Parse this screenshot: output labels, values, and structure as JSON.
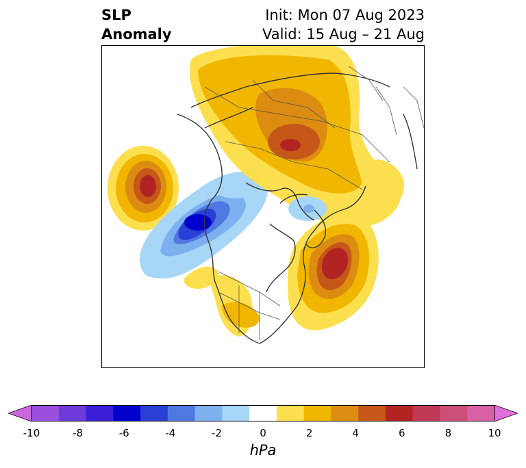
{
  "title": {
    "left_line1": "SLP",
    "left_line2": "Anomaly",
    "right_line1": "Init: Mon 07 Aug 2023",
    "right_line2": "Valid: 15 Aug – 21 Aug"
  },
  "colorbar": {
    "ticks": [
      "-10",
      "-8",
      "-6",
      "-4",
      "-2",
      "0",
      "2",
      "4",
      "6",
      "8",
      "10"
    ],
    "unit": "hPa",
    "colors": [
      "#cc66dd",
      "#9a4fdd",
      "#6e3ad9",
      "#3b1fd6",
      "#0000cc",
      "#2a3fd6",
      "#4f78e0",
      "#7cb0ef",
      "#a7d6f7",
      "#ffffff",
      "#fcdf4e",
      "#f1b600",
      "#dc8c10",
      "#c55818",
      "#b22424",
      "#bf3a55",
      "#cc4f7a",
      "#d861a4",
      "#e070d8"
    ]
  },
  "map": {
    "projection": "north-polar-stereographic",
    "features": [
      "coastlines",
      "country-borders",
      "state-borders"
    ],
    "anomaly_centers": [
      {
        "name": "north-pacific-high",
        "peak_hpa": 6
      },
      {
        "name": "gulf-of-alaska-low",
        "peak_hpa": -6
      },
      {
        "name": "siberia-high",
        "peak_hpa": 5
      },
      {
        "name": "north-atlantic-high",
        "peak_hpa": 6
      },
      {
        "name": "arctic-low",
        "peak_hpa": -2
      }
    ]
  }
}
